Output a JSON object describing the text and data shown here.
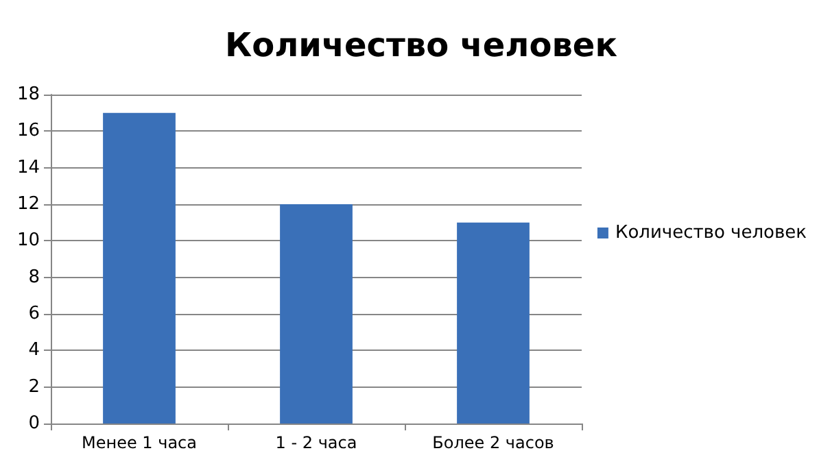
{
  "chart_data": {
    "type": "bar",
    "title": "Количество человек",
    "categories": [
      "Менее 1 часа",
      "1 - 2 часа",
      "Более 2 часов"
    ],
    "series": [
      {
        "name": "Количество человек",
        "color": "#3a70b8",
        "values": [
          17,
          12,
          11
        ]
      }
    ],
    "ylim": [
      0,
      18
    ],
    "yticks": [
      0,
      2,
      4,
      6,
      8,
      10,
      12,
      14,
      16,
      18
    ],
    "grid": "y",
    "legend": "right"
  }
}
